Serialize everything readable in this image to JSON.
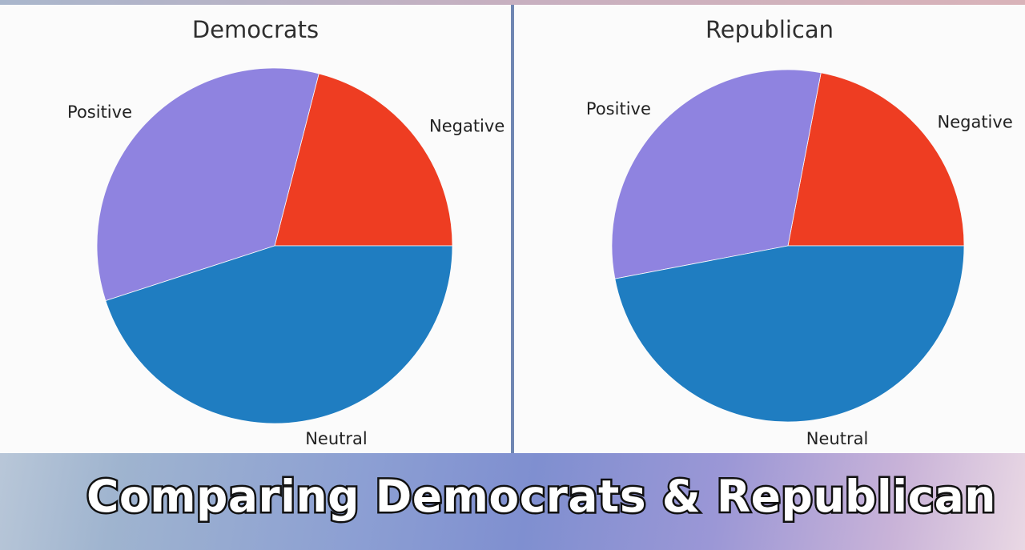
{
  "caption": "Comparing Democrats & Republican",
  "chart_data": [
    {
      "type": "pie",
      "title": "Democrats",
      "labels": [
        "Negative",
        "Positive",
        "Neutral"
      ],
      "values": [
        21,
        34,
        45
      ],
      "colors": [
        "#ee3d22",
        "#8f83e0",
        "#1f7dc1"
      ],
      "start_angle": 0,
      "direction": "counterclockwise"
    },
    {
      "type": "pie",
      "title": "Republican",
      "labels": [
        "Negative",
        "Positive",
        "Neutral"
      ],
      "values": [
        22,
        31,
        47
      ],
      "colors": [
        "#ee3d22",
        "#8f83e0",
        "#1f7dc1"
      ],
      "start_angle": 0,
      "direction": "counterclockwise"
    }
  ]
}
